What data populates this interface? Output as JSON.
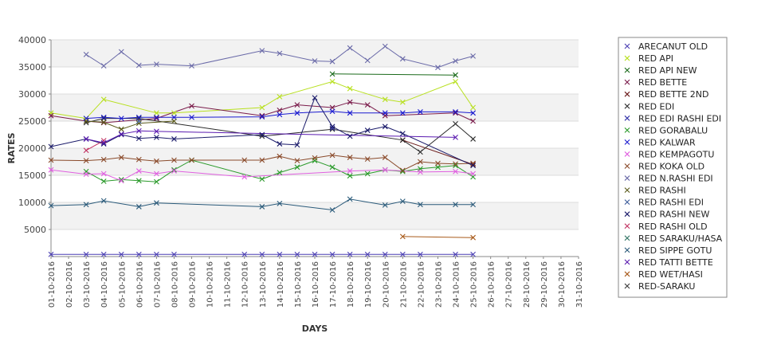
{
  "chart_data": {
    "type": "line",
    "title": "",
    "xlabel": "DAYS",
    "ylabel": "RATES",
    "ylim": [
      0,
      40000
    ],
    "yticks": [
      5000,
      10000,
      15000,
      20000,
      25000,
      30000,
      35000,
      40000
    ],
    "x": [
      "01-10-2016",
      "02-10-2016",
      "03-10-2016",
      "04-10-2016",
      "05-10-2016",
      "06-10-2016",
      "07-10-2016",
      "08-10-2016",
      "09-10-2016",
      "10-10-2016",
      "11-10-2016",
      "12-10-2016",
      "13-10-2016",
      "14-10-2016",
      "15-10-2016",
      "16-10-2016",
      "17-10-2016",
      "18-10-2016",
      "19-10-2016",
      "20-10-2016",
      "21-10-2016",
      "22-10-2016",
      "23-10-2016",
      "24-10-2016",
      "25-10-2016",
      "26-10-2016",
      "27-10-2016",
      "28-10-2016",
      "29-10-2016",
      "30-10-2016",
      "31-10-2016"
    ],
    "grid": true,
    "background_bands": true,
    "legend_position": "right",
    "series": [
      {
        "name": "ARECANUT OLD",
        "color": "#4b3fb3",
        "values": [
          400,
          null,
          400,
          400,
          400,
          400,
          400,
          400,
          null,
          null,
          null,
          400,
          400,
          400,
          400,
          400,
          400,
          400,
          400,
          400,
          400,
          400,
          null,
          400,
          400,
          null,
          null,
          null,
          null,
          null,
          null
        ]
      },
      {
        "name": "RED API",
        "color": "#b8e020",
        "values": [
          26500,
          null,
          25500,
          29000,
          null,
          null,
          26500,
          26500,
          null,
          null,
          null,
          null,
          27500,
          29500,
          null,
          null,
          32300,
          31000,
          null,
          29000,
          28500,
          null,
          null,
          32300,
          27500,
          null,
          null,
          null,
          null,
          null,
          null
        ]
      },
      {
        "name": "RED API NEW",
        "color": "#1a6a1a",
        "values": [
          null,
          null,
          null,
          null,
          null,
          null,
          null,
          null,
          null,
          null,
          null,
          null,
          null,
          null,
          null,
          null,
          33700,
          null,
          null,
          null,
          null,
          null,
          null,
          33500,
          null,
          null,
          null,
          null,
          null,
          null,
          null
        ]
      },
      {
        "name": "RED BETTE",
        "color": "#7a1a4a",
        "values": [
          26000,
          null,
          25000,
          24700,
          null,
          null,
          25500,
          null,
          27800,
          null,
          null,
          null,
          26000,
          27000,
          28000,
          null,
          27500,
          28500,
          28000,
          26000,
          null,
          null,
          null,
          26500,
          25000,
          null,
          null,
          null,
          null,
          null,
          null
        ]
      },
      {
        "name": "RED BETTE 2ND",
        "color": "#6b1a1a",
        "values": [
          null,
          null,
          null,
          null,
          null,
          null,
          null,
          null,
          null,
          null,
          null,
          null,
          null,
          null,
          null,
          null,
          null,
          null,
          null,
          null,
          21500,
          null,
          null,
          null,
          17000,
          null,
          null,
          null,
          null,
          null,
          null
        ]
      },
      {
        "name": "RED EDI",
        "color": "#2a2a2a",
        "values": [
          null,
          null,
          24700,
          25500,
          null,
          25500,
          null,
          null,
          null,
          null,
          null,
          null,
          22200,
          null,
          null,
          null,
          23500,
          null,
          null,
          null,
          21500,
          19300,
          null,
          24500,
          21700,
          null,
          null,
          null,
          null,
          null,
          null
        ]
      },
      {
        "name": "RED EDI RASHI EDI",
        "color": "#3333aa",
        "values": [
          null,
          null,
          null,
          null,
          null,
          null,
          null,
          null,
          null,
          null,
          null,
          null,
          null,
          null,
          null,
          null,
          23700,
          null,
          null,
          null,
          null,
          null,
          null,
          null,
          null,
          null,
          null,
          null,
          null,
          null,
          null
        ]
      },
      {
        "name": "RED GORABALU",
        "color": "#2a9a2a",
        "values": [
          null,
          null,
          15700,
          13900,
          14200,
          14000,
          13800,
          16000,
          17800,
          null,
          null,
          null,
          14300,
          15500,
          16500,
          17700,
          16500,
          14900,
          15300,
          16000,
          15700,
          16200,
          16500,
          16800,
          14700,
          null,
          null,
          null,
          null,
          null,
          null
        ]
      },
      {
        "name": "RED KALWAR",
        "color": "#1a1ad0",
        "values": [
          null,
          null,
          25500,
          25700,
          25500,
          25700,
          25700,
          25700,
          25700,
          null,
          null,
          null,
          25800,
          26200,
          26500,
          null,
          26800,
          26500,
          null,
          26500,
          26500,
          26700,
          null,
          26700,
          26500,
          null,
          null,
          null,
          null,
          null,
          null
        ]
      },
      {
        "name": "RED KEMPAGOTU",
        "color": "#e060e0",
        "values": [
          16000,
          null,
          15200,
          15300,
          14000,
          15800,
          15300,
          15800,
          null,
          null,
          null,
          14700,
          null,
          null,
          null,
          null,
          null,
          15800,
          null,
          16000,
          null,
          15600,
          null,
          15700,
          15300,
          null,
          null,
          null,
          null,
          null,
          null
        ]
      },
      {
        "name": "RED KOKA OLD",
        "color": "#8a4a2a",
        "values": [
          17800,
          null,
          17700,
          17900,
          18300,
          17900,
          17600,
          17800,
          17800,
          null,
          null,
          17800,
          17800,
          18500,
          17700,
          18200,
          18700,
          18300,
          18000,
          18300,
          15900,
          17500,
          17200,
          17100,
          17200,
          null,
          null,
          null,
          null,
          null,
          null
        ]
      },
      {
        "name": "RED N.RASHI EDI",
        "color": "#6a6aa8",
        "values": [
          null,
          null,
          37300,
          35200,
          37800,
          35300,
          35500,
          null,
          35200,
          null,
          null,
          null,
          38000,
          37500,
          null,
          36100,
          36000,
          38500,
          36200,
          38800,
          36500,
          null,
          34900,
          36100,
          37000,
          null,
          null,
          null,
          null,
          null,
          null
        ]
      },
      {
        "name": "RED RASHI",
        "color": "#5a5a1a",
        "values": [
          null,
          null,
          25000,
          24800,
          23500,
          24600,
          null,
          25000,
          null,
          null,
          null,
          null,
          null,
          null,
          null,
          null,
          null,
          null,
          null,
          null,
          null,
          null,
          null,
          null,
          null,
          null,
          null,
          null,
          null,
          null,
          null
        ]
      },
      {
        "name": "RED RASHI EDI",
        "color": "#3a5a9a",
        "values": [
          null,
          null,
          null,
          null,
          null,
          25000,
          null,
          null,
          null,
          null,
          null,
          null,
          null,
          null,
          null,
          null,
          null,
          null,
          null,
          null,
          null,
          null,
          null,
          null,
          null,
          null,
          null,
          null,
          null,
          null,
          null
        ]
      },
      {
        "name": "RED RASHI NEW",
        "color": "#1a1a6a",
        "values": [
          20300,
          null,
          21700,
          20800,
          22500,
          21800,
          22000,
          21700,
          null,
          null,
          null,
          null,
          22500,
          20800,
          20600,
          29300,
          24000,
          22200,
          23300,
          24000,
          22700,
          null,
          null,
          null,
          16800,
          null,
          null,
          null,
          null,
          null,
          null
        ]
      },
      {
        "name": "RED RASHI OLD",
        "color": "#c03060",
        "values": [
          null,
          null,
          19600,
          21400,
          null,
          null,
          null,
          null,
          null,
          null,
          null,
          null,
          null,
          null,
          null,
          null,
          null,
          null,
          null,
          null,
          null,
          null,
          null,
          null,
          null,
          null,
          null,
          null,
          null,
          null,
          null
        ]
      },
      {
        "name": "RED SARAKU/HASA",
        "color": "#3a7a6a",
        "values": [
          null,
          null,
          null,
          null,
          null,
          null,
          null,
          null,
          null,
          null,
          null,
          null,
          null,
          null,
          null,
          null,
          null,
          null,
          null,
          null,
          null,
          null,
          null,
          null,
          null,
          null,
          null,
          null,
          null,
          null,
          null
        ]
      },
      {
        "name": "RED SIPPE GOTU",
        "color": "#2a5a7a",
        "values": [
          9400,
          null,
          9600,
          10300,
          null,
          9200,
          9900,
          null,
          null,
          null,
          null,
          null,
          9200,
          9800,
          null,
          null,
          8600,
          10600,
          null,
          9500,
          10200,
          9600,
          null,
          9600,
          9600,
          null,
          null,
          null,
          null,
          null,
          null
        ]
      },
      {
        "name": "RED TATTI BETTE",
        "color": "#5a1ab0",
        "values": [
          null,
          null,
          21700,
          21000,
          22600,
          23200,
          23100,
          null,
          null,
          null,
          null,
          null,
          null,
          null,
          null,
          null,
          null,
          null,
          null,
          null,
          null,
          null,
          null,
          22000,
          null,
          null,
          null,
          null,
          null,
          null,
          null
        ]
      },
      {
        "name": "RED WET/HASI",
        "color": "#a85a1a",
        "values": [
          null,
          null,
          null,
          null,
          null,
          null,
          null,
          null,
          null,
          null,
          null,
          null,
          null,
          null,
          null,
          null,
          null,
          null,
          null,
          null,
          3700,
          null,
          null,
          null,
          3500,
          null,
          null,
          null,
          null,
          null,
          null
        ]
      },
      {
        "name": "RED-SARAKU",
        "color": "#3a3a3a",
        "values": [
          null,
          null,
          null,
          null,
          null,
          null,
          null,
          null,
          null,
          null,
          null,
          null,
          null,
          null,
          null,
          null,
          null,
          null,
          null,
          null,
          null,
          null,
          null,
          null,
          null,
          null,
          null,
          null,
          null,
          null,
          null
        ]
      }
    ]
  }
}
